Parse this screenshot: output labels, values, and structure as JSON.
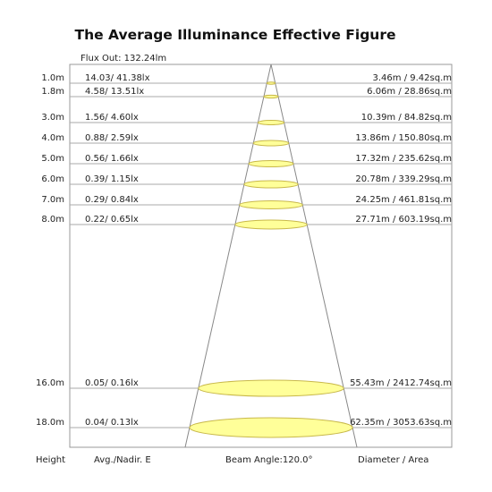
{
  "title": "The Average Illuminance Effective Figure",
  "flux_out": "Flux Out: 132.24lm",
  "rows": [
    {
      "height": "1.0m",
      "avg_nadir": "14.03/ 41.38lx",
      "diameter_area": "3.46m / 9.42sq.m"
    },
    {
      "height": "1.8m",
      "avg_nadir": "4.58/ 13.51lx",
      "diameter_area": "6.06m / 28.86sq.m"
    },
    {
      "height": "3.0m",
      "avg_nadir": "1.56/ 4.60lx",
      "diameter_area": "10.39m / 84.82sq.m"
    },
    {
      "height": "4.0m",
      "avg_nadir": "0.88/ 2.59lx",
      "diameter_area": "13.86m / 150.80sq.m"
    },
    {
      "height": "5.0m",
      "avg_nadir": "0.56/ 1.66lx",
      "diameter_area": "17.32m / 235.62sq.m"
    },
    {
      "height": "6.0m",
      "avg_nadir": "0.39/ 1.15lx",
      "diameter_area": "20.78m / 339.29sq.m"
    },
    {
      "height": "7.0m",
      "avg_nadir": "0.29/ 0.84lx",
      "diameter_area": "24.25m / 461.81sq.m"
    },
    {
      "height": "8.0m",
      "avg_nadir": "0.22/ 0.65lx",
      "diameter_area": "27.71m / 603.19sq.m"
    },
    {
      "height": "16.0m",
      "avg_nadir": "0.05/ 0.16lx",
      "diameter_area": "55.43m / 2412.74sq.m"
    },
    {
      "height": "18.0m",
      "avg_nadir": "0.04/ 0.13lx",
      "diameter_area": "62.35m / 3053.63sq.m"
    }
  ],
  "footer": {
    "height": "Height",
    "avg_nadir": "Avg./Nadir. E",
    "beam_angle": "Beam Angle:120.0°",
    "diameter_area": "Diameter / Area"
  }
}
